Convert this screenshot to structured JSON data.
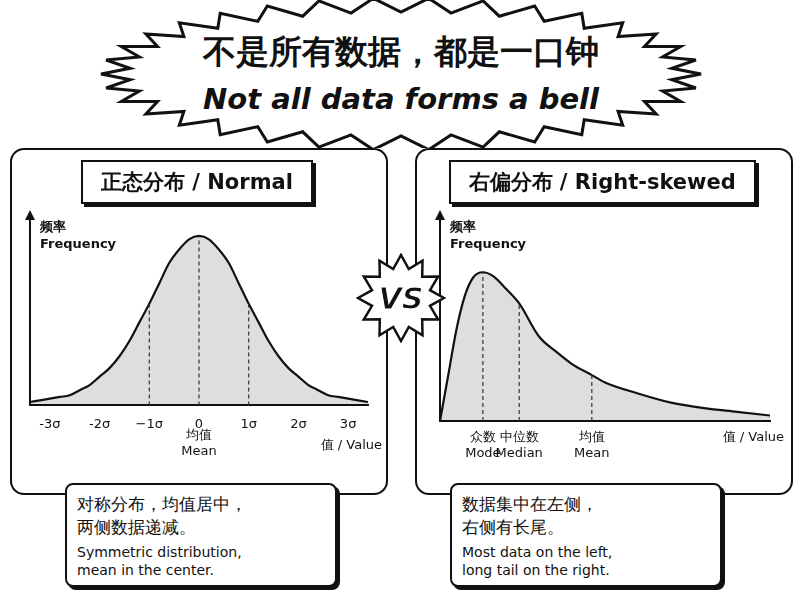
{
  "title": "不是所有数据，都是一口钟",
  "subtitle": "Not all data forms a bell",
  "vs": "VS",
  "chart_data": [
    {
      "type": "area",
      "title": "正态分布 / Normal",
      "y_label": [
        "频率",
        "Frequency"
      ],
      "x_label": "值 / Value",
      "x": [
        -3.4,
        -3.2,
        -3.0,
        -2.8,
        -2.6,
        -2.4,
        -2.2,
        -2.0,
        -1.8,
        -1.6,
        -1.4,
        -1.2,
        -1.0,
        -0.8,
        -0.6,
        -0.4,
        -0.2,
        0,
        0.2,
        0.4,
        0.6,
        0.8,
        1.0,
        1.2,
        1.4,
        1.6,
        1.8,
        2.0,
        2.2,
        2.4,
        2.6,
        2.8,
        3.0,
        3.2,
        3.4
      ],
      "values": [
        0.02,
        0.03,
        0.04,
        0.05,
        0.06,
        0.09,
        0.12,
        0.17,
        0.22,
        0.29,
        0.38,
        0.49,
        0.6,
        0.72,
        0.84,
        0.92,
        0.98,
        1.0,
        0.98,
        0.92,
        0.84,
        0.72,
        0.6,
        0.49,
        0.38,
        0.29,
        0.22,
        0.17,
        0.12,
        0.09,
        0.06,
        0.05,
        0.04,
        0.03,
        0.02
      ],
      "color": "#111111",
      "xlim": [
        -3.4,
        3.4
      ],
      "ylim": [
        0,
        1.1
      ],
      "xticks": [
        {
          "value": -3,
          "label": "-3σ"
        },
        {
          "value": -2,
          "label": "-2σ"
        },
        {
          "value": -1,
          "label": "−1σ"
        },
        0,
        {
          "value": 1,
          "label": "1σ"
        },
        {
          "value": 2,
          "label": "2σ"
        },
        {
          "value": 3,
          "label": "3σ"
        }
      ],
      "tick_labels": "x",
      "grid": false,
      "reference_lines": [
        {
          "x": -1
        },
        {
          "x": 0,
          "label": [
            "均值",
            "Mean"
          ]
        },
        {
          "x": 1
        }
      ],
      "caption": {
        "zh": [
          "对称分布，均值居中，",
          "两侧数据递减。"
        ],
        "en": [
          "Symmetric distribution,",
          "mean in the center."
        ]
      }
    },
    {
      "type": "area",
      "title": "右偏分布 / Right-skewed",
      "y_label": [
        "频率",
        "Frequency"
      ],
      "x_label": "值 / Value",
      "x": [
        0,
        0.25,
        0.5,
        0.75,
        1,
        1.3,
        1.6,
        2,
        2.4,
        3,
        3.5,
        4,
        4.6,
        5,
        6,
        7,
        8,
        9,
        10
      ],
      "values": [
        0,
        0.25,
        0.5,
        0.68,
        0.78,
        0.81,
        0.79,
        0.72,
        0.64,
        0.46,
        0.38,
        0.31,
        0.25,
        0.21,
        0.15,
        0.1,
        0.07,
        0.05,
        0.03
      ],
      "color": "#111111",
      "xlim": [
        0,
        10
      ],
      "ylim": [
        0,
        1.1
      ],
      "tick_labels": false,
      "grid": false,
      "reference_lines": [
        {
          "x": 1.3,
          "label": [
            "众数",
            "Mode"
          ]
        },
        {
          "x": 2.4,
          "label": [
            "中位数",
            "Median"
          ]
        },
        {
          "x": 4.6,
          "label": [
            "均值",
            "Mean"
          ]
        }
      ],
      "caption": {
        "zh": [
          "数据集中在左侧，",
          "右侧有长尾。"
        ],
        "en": [
          "Most data on the left,",
          "long tail on the right."
        ]
      }
    }
  ]
}
